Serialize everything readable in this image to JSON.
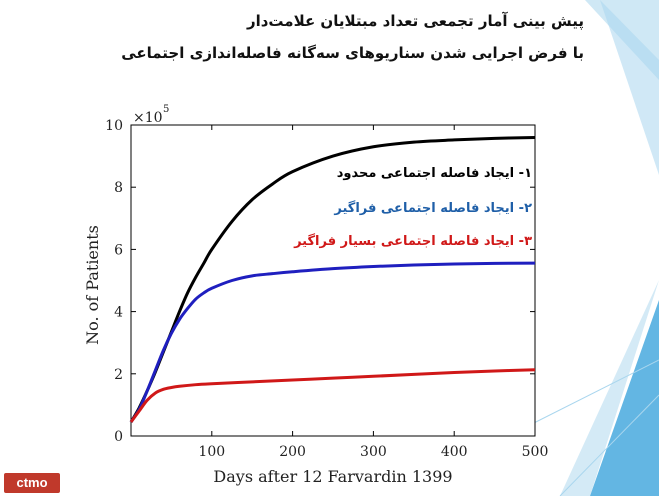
{
  "title": {
    "line1": "پیش بینی آمار تجمعی تعداد مبتلایان علامت‌دار",
    "line2": "با فرض اجرایی شدن سناریوهای سه‌گانه فاصله‌اندازی اجتماعی"
  },
  "logo": {
    "text": "ctmo"
  },
  "colors": {
    "black_series": "#000000",
    "blue_series": "#1f1fbf",
    "red_series": "#d01818",
    "legend_blue": "#1f5fa8",
    "deco_light": "#cfe8f5",
    "deco_mid": "#a9d6ee",
    "deco_dark": "#63b6e3",
    "logo_bg": "#c0392b"
  },
  "chart_data": {
    "type": "line",
    "title": "",
    "xlabel": "Days after 12 Farvardin 1399",
    "ylabel": "No. of Patients",
    "y_multiplier_label": "×10",
    "y_multiplier_exp": "5",
    "xlim": [
      0,
      500
    ],
    "ylim": [
      0,
      10
    ],
    "xticks": [
      100,
      200,
      300,
      400,
      500
    ],
    "yticks": [
      0,
      2,
      4,
      6,
      8,
      10
    ],
    "grid": false,
    "legend_position": "top-right",
    "series": [
      {
        "name": "۱- ایجاد فاصله اجتماعی محدود",
        "color": "#000000",
        "x": [
          0,
          10,
          20,
          30,
          40,
          50,
          60,
          70,
          80,
          90,
          100,
          125,
          150,
          175,
          200,
          250,
          300,
          350,
          400,
          450,
          500
        ],
        "y": [
          0.45,
          0.9,
          1.45,
          2.05,
          2.7,
          3.35,
          4.0,
          4.6,
          5.1,
          5.55,
          6.0,
          6.9,
          7.6,
          8.1,
          8.5,
          9.0,
          9.3,
          9.45,
          9.52,
          9.57,
          9.6
        ]
      },
      {
        "name": "۲- ایجاد فاصله اجتماعی فراگیر",
        "color": "#1f1fbf",
        "x": [
          0,
          10,
          20,
          30,
          40,
          50,
          60,
          70,
          80,
          90,
          100,
          125,
          150,
          175,
          200,
          250,
          300,
          350,
          400,
          450,
          500
        ],
        "y": [
          0.45,
          0.85,
          1.45,
          2.1,
          2.75,
          3.3,
          3.75,
          4.1,
          4.4,
          4.6,
          4.75,
          5.0,
          5.15,
          5.22,
          5.28,
          5.38,
          5.45,
          5.5,
          5.53,
          5.55,
          5.56
        ]
      },
      {
        "name": "۳- ایجاد فاصله اجتماعی بسیار فراگیر",
        "color": "#d01818",
        "x": [
          0,
          10,
          20,
          30,
          40,
          50,
          60,
          80,
          100,
          150,
          200,
          250,
          300,
          350,
          400,
          450,
          500
        ],
        "y": [
          0.45,
          0.8,
          1.15,
          1.38,
          1.5,
          1.56,
          1.6,
          1.65,
          1.68,
          1.74,
          1.8,
          1.86,
          1.92,
          1.98,
          2.04,
          2.09,
          2.13
        ]
      }
    ]
  }
}
